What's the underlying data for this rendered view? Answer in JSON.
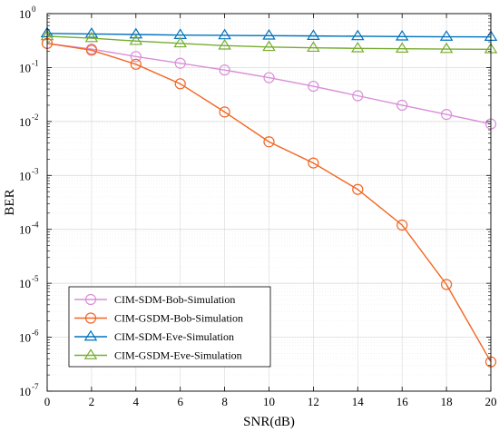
{
  "chart_data": {
    "type": "line",
    "title": "",
    "xlabel": "SNR(dB)",
    "ylabel": "BER",
    "xlim": [
      0,
      20
    ],
    "ylim": [
      1e-07,
      1
    ],
    "y_scale": "log",
    "grid": true,
    "minor_grid": true,
    "legend_position": "bottom-left",
    "x_ticks": [
      0,
      2,
      4,
      6,
      8,
      10,
      12,
      14,
      16,
      18,
      20
    ],
    "x_tick_labels": [
      "0",
      "2",
      "4",
      "6",
      "8",
      "10",
      "12",
      "14",
      "16",
      "18",
      "20"
    ],
    "y_ticks": [
      {
        "value": 1e-07,
        "base": "10",
        "exp": "-7"
      },
      {
        "value": 1e-06,
        "base": "10",
        "exp": "-6"
      },
      {
        "value": 1e-05,
        "base": "10",
        "exp": "-5"
      },
      {
        "value": 0.0001,
        "base": "10",
        "exp": "-4"
      },
      {
        "value": 0.001,
        "base": "10",
        "exp": "-3"
      },
      {
        "value": 0.01,
        "base": "10",
        "exp": "-2"
      },
      {
        "value": 0.1,
        "base": "10",
        "exp": "-1"
      },
      {
        "value": 1,
        "base": "10",
        "exp": "0"
      }
    ],
    "x": [
      0,
      2,
      4,
      6,
      8,
      10,
      12,
      14,
      16,
      18,
      20
    ],
    "series": [
      {
        "name": "CIM-SDM-Bob-Simulation",
        "color": "#d98fd8",
        "marker": "circle",
        "values": [
          0.28,
          0.22,
          0.16,
          0.12,
          0.09,
          0.065,
          0.045,
          0.03,
          0.02,
          0.0135,
          0.009
        ]
      },
      {
        "name": "CIM-GSDM-Bob-Simulation",
        "color": "#f26522",
        "marker": "circle",
        "values": [
          0.28,
          0.21,
          0.115,
          0.05,
          0.015,
          0.0042,
          0.0017,
          0.00055,
          0.00012,
          9.5e-06,
          3.5e-07
        ]
      },
      {
        "name": "CIM-SDM-Eve-Simulation",
        "color": "#0072bd",
        "marker": "triangle",
        "values": [
          0.43,
          0.42,
          0.41,
          0.4,
          0.395,
          0.39,
          0.385,
          0.38,
          0.375,
          0.372,
          0.37
        ]
      },
      {
        "name": "CIM-GSDM-Eve-Simulation",
        "color": "#77ac30",
        "marker": "triangle",
        "values": [
          0.38,
          0.35,
          0.31,
          0.28,
          0.255,
          0.24,
          0.232,
          0.227,
          0.223,
          0.22,
          0.218
        ]
      }
    ]
  }
}
